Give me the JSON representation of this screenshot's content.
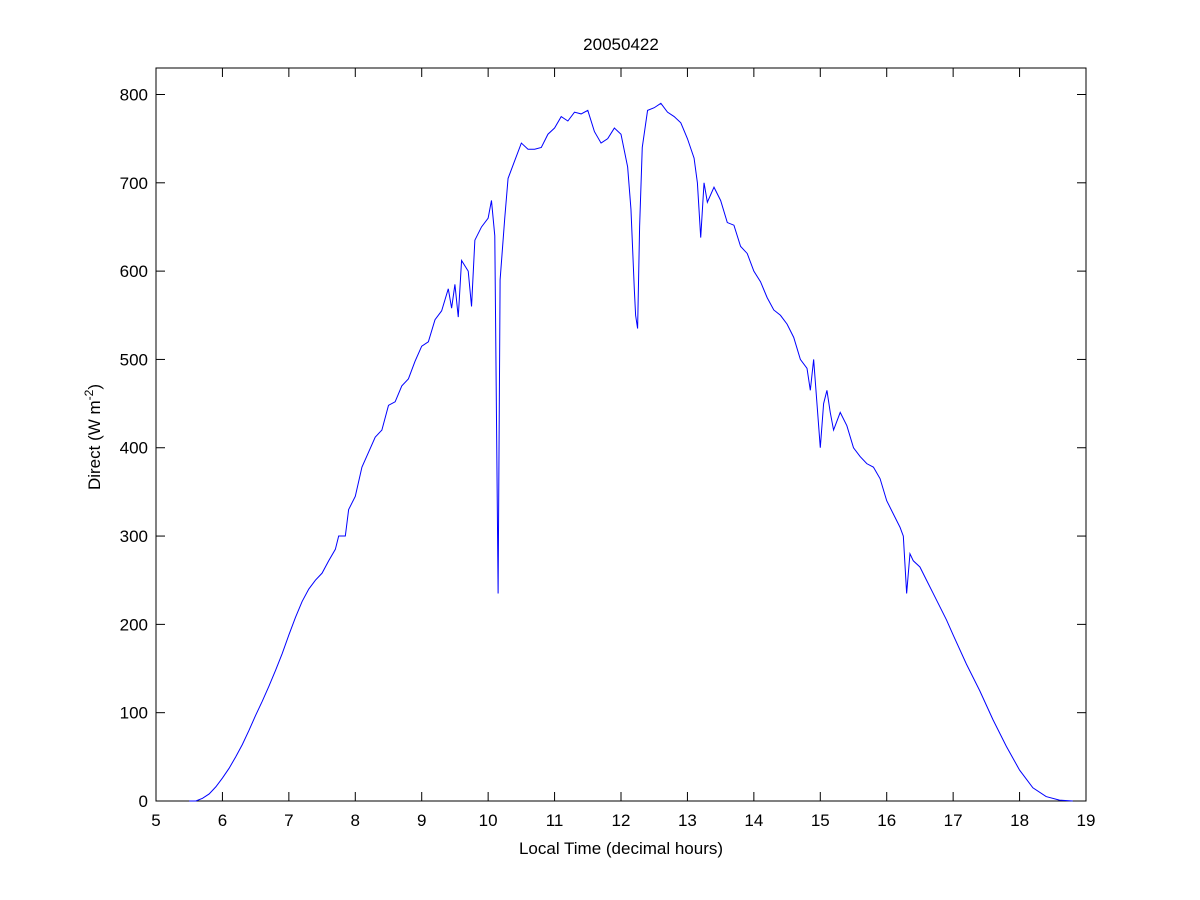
{
  "chart_data": {
    "type": "line",
    "title": "20050422",
    "xlabel": "Local Time (decimal hours)",
    "ylabel_parts": [
      "Direct (W m",
      "-2",
      ")"
    ],
    "xlim": [
      5,
      19
    ],
    "ylim": [
      0,
      830
    ],
    "xticks": [
      5,
      6,
      7,
      8,
      9,
      10,
      11,
      12,
      13,
      14,
      15,
      16,
      17,
      18,
      19
    ],
    "yticks": [
      0,
      100,
      200,
      300,
      400,
      500,
      600,
      700,
      800
    ],
    "color": "#0000ff",
    "x": [
      5.5,
      5.6,
      5.7,
      5.8,
      5.9,
      6.0,
      6.1,
      6.2,
      6.3,
      6.4,
      6.5,
      6.6,
      6.7,
      6.8,
      6.9,
      7.0,
      7.1,
      7.2,
      7.3,
      7.4,
      7.5,
      7.6,
      7.7,
      7.75,
      7.85,
      7.9,
      8.0,
      8.1,
      8.2,
      8.3,
      8.4,
      8.5,
      8.6,
      8.7,
      8.8,
      8.9,
      9.0,
      9.1,
      9.2,
      9.3,
      9.4,
      9.45,
      9.5,
      9.55,
      9.6,
      9.7,
      9.75,
      9.8,
      9.9,
      10.0,
      10.05,
      10.1,
      10.15,
      10.18,
      10.25,
      10.3,
      10.4,
      10.5,
      10.6,
      10.7,
      10.8,
      10.9,
      11.0,
      11.1,
      11.2,
      11.3,
      11.4,
      11.5,
      11.6,
      11.7,
      11.8,
      11.9,
      12.0,
      12.1,
      12.15,
      12.2,
      12.22,
      12.25,
      12.28,
      12.32,
      12.4,
      12.5,
      12.6,
      12.7,
      12.8,
      12.9,
      13.0,
      13.1,
      13.15,
      13.2,
      13.25,
      13.3,
      13.4,
      13.5,
      13.6,
      13.7,
      13.8,
      13.9,
      14.0,
      14.1,
      14.2,
      14.3,
      14.4,
      14.5,
      14.6,
      14.7,
      14.8,
      14.85,
      14.9,
      15.0,
      15.05,
      15.1,
      15.15,
      15.2,
      15.3,
      15.4,
      15.5,
      15.6,
      15.7,
      15.8,
      15.9,
      16.0,
      16.1,
      16.2,
      16.25,
      16.3,
      16.35,
      16.4,
      16.5,
      16.6,
      16.7,
      16.8,
      16.9,
      17.0,
      17.2,
      17.4,
      17.6,
      17.8,
      18.0,
      18.2,
      18.4,
      18.6,
      18.8
    ],
    "values": [
      0,
      0,
      3,
      8,
      16,
      26,
      37,
      50,
      64,
      80,
      97,
      113,
      130,
      148,
      167,
      188,
      208,
      226,
      240,
      250,
      258,
      272,
      285,
      300,
      300,
      330,
      345,
      378,
      395,
      412,
      420,
      448,
      452,
      470,
      478,
      498,
      515,
      520,
      545,
      555,
      580,
      558,
      585,
      548,
      612,
      600,
      560,
      635,
      650,
      660,
      680,
      640,
      235,
      590,
      660,
      705,
      725,
      745,
      738,
      738,
      740,
      755,
      762,
      775,
      770,
      780,
      778,
      782,
      758,
      745,
      750,
      762,
      755,
      718,
      670,
      580,
      550,
      535,
      650,
      740,
      782,
      785,
      790,
      780,
      775,
      768,
      750,
      728,
      700,
      638,
      700,
      678,
      695,
      680,
      655,
      652,
      628,
      620,
      600,
      588,
      570,
      556,
      550,
      540,
      525,
      500,
      490,
      465,
      500,
      400,
      450,
      465,
      440,
      420,
      440,
      425,
      400,
      390,
      382,
      378,
      365,
      340,
      325,
      310,
      300,
      235,
      280,
      272,
      265,
      250,
      235,
      220,
      205,
      188,
      155,
      125,
      92,
      62,
      35,
      15,
      5,
      1,
      0
    ]
  }
}
